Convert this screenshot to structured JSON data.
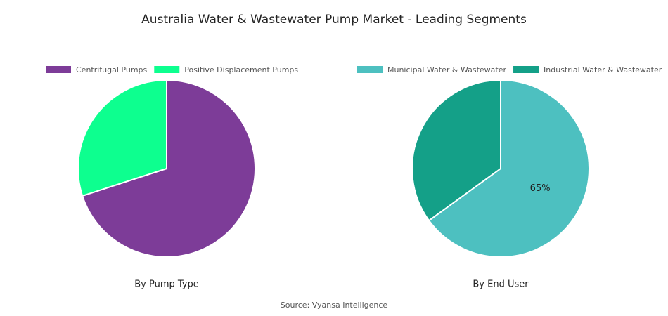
{
  "title": "Australia Water & Wastewater Pump Market - Leading Segments",
  "source": "Source: Vyansa Intelligence",
  "chart_data": [
    {
      "type": "pie",
      "subtitle": "By Pump Type",
      "categories": [
        "Centrifugal Pumps",
        "Positive Displacement Pumps"
      ],
      "values": [
        70,
        30
      ],
      "colors": [
        "#7d3c98",
        "#0dff8f"
      ]
    },
    {
      "type": "pie",
      "subtitle": "By End User",
      "categories": [
        "Municipal Water & Wastewater",
        "Industrial Water & Wastewater"
      ],
      "values": [
        65,
        35
      ],
      "value_labels": [
        "65%",
        null
      ],
      "colors": [
        "#4dc0c0",
        "#14a088"
      ]
    }
  ]
}
